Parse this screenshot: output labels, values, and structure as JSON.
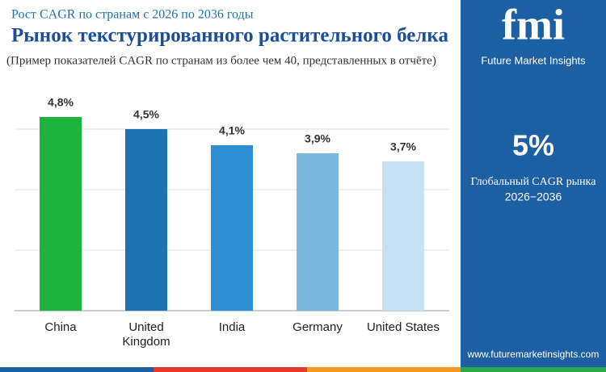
{
  "chart_data": {
    "type": "bar",
    "subtitle": "Рост CAGR по странам с 2026 по 2036 годы",
    "title": "Рынок текстурированного растительного белка",
    "annotation": "(Пример показателей CAGR по странам из более чем 40, представленных в отчёте)",
    "categories": [
      "China",
      "United Kingdom",
      "India",
      "Germany",
      "United States"
    ],
    "values": [
      4.8,
      4.5,
      4.1,
      3.9,
      3.7
    ],
    "value_labels": [
      "4,8%",
      "4,5%",
      "4,1%",
      "3,9%",
      "3,7%"
    ],
    "colors": [
      "#1db33c",
      "#1f72b2",
      "#2f8fd6",
      "#7ab8e0",
      "#c5e1f3"
    ],
    "ylim": [
      0,
      6
    ],
    "yticks": [
      1.5,
      3,
      4.5
    ],
    "grid": true
  },
  "sidebar": {
    "logo": "fmi",
    "brand": "Future Market Insights",
    "stat": "5%",
    "stat_label": "Глобальный CAGR рынка",
    "stat_period": "2026−2036",
    "website": "www.futuremarketinsights.com"
  }
}
